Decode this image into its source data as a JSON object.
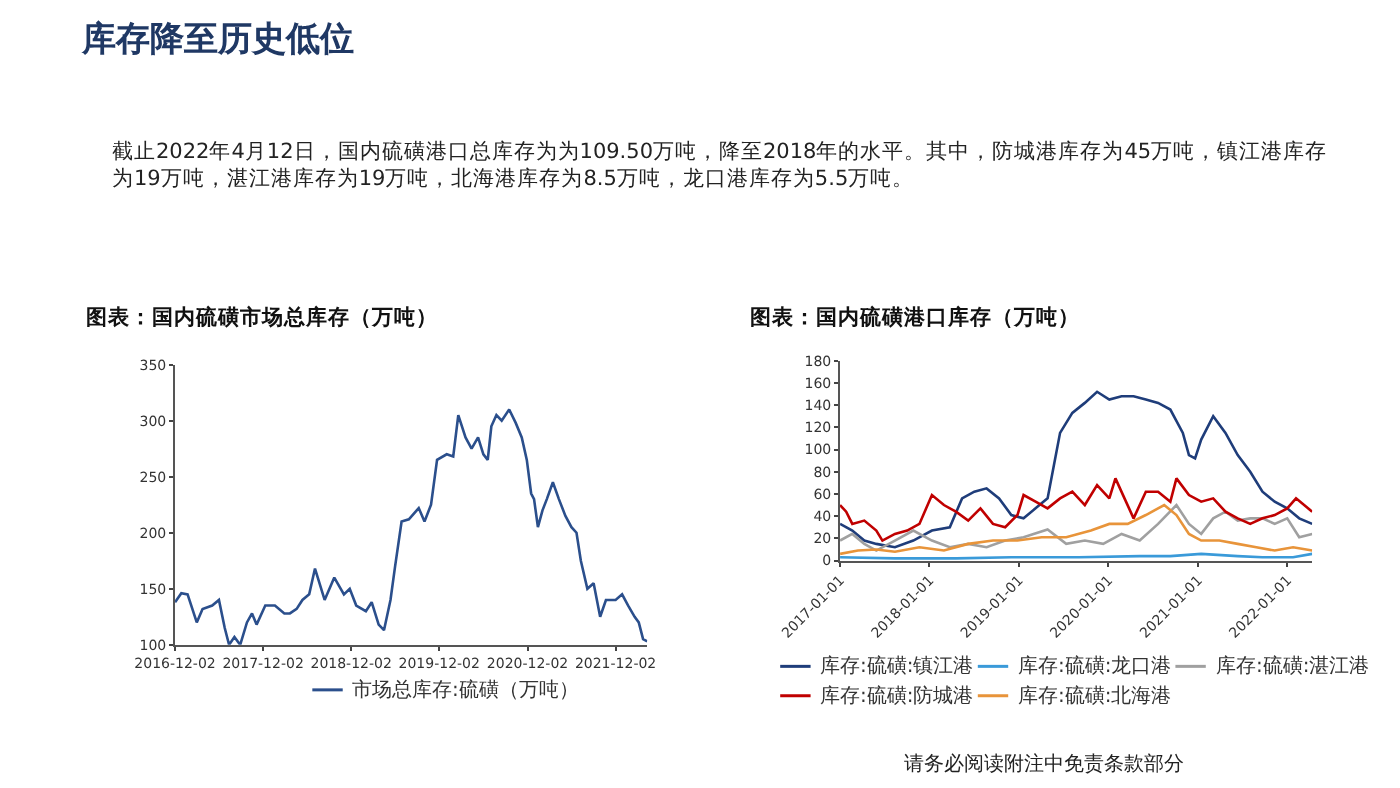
{
  "chart_data": [
    {
      "type": "other",
      "title": "库存降至历史低位",
      "annotations": [
        "截止2022年4月12日，国内硫磺港口总库存为为109.50万吨，降至2018年的水平。其中，防城港库存为45万吨，镇江港库存为19万吨，湛江港库存为19万吨，北海港库存为8.5万吨，龙口港库存为5.5万吨。",
        "请务必阅读附注中免责条款部分"
      ]
    },
    {
      "type": "line",
      "title": "图表：国内硫磺市场总库存（万吨）",
      "legend": "bottom",
      "xlim": [
        "2016-12-02",
        "2022-04-12"
      ],
      "xticks": [
        "2016-12-02",
        "2017-12-02",
        "2018-12-02",
        "2019-12-02",
        "2020-12-02",
        "2021-12-02"
      ],
      "ylim": [
        100,
        350
      ],
      "yticks": [
        100,
        150,
        200,
        250,
        300,
        350
      ],
      "series": [
        {
          "name": "市场总库存:硫磺（万吨）",
          "color": "#2b4f8c",
          "x": [
            "2016-12-02",
            "2016-12-28",
            "2017-01-23",
            "2017-03-02",
            "2017-03-26",
            "2017-05-05",
            "2017-06-02",
            "2017-06-26",
            "2017-07-14",
            "2017-08-05",
            "2017-08-29",
            "2017-09-26",
            "2017-10-17",
            "2017-11-05",
            "2017-12-11",
            "2018-01-20",
            "2018-02-28",
            "2018-03-23",
            "2018-04-20",
            "2018-05-14",
            "2018-06-11",
            "2018-07-05",
            "2018-08-14",
            "2018-09-23",
            "2018-11-02",
            "2018-11-26",
            "2018-12-23",
            "2019-02-01",
            "2019-02-25",
            "2019-03-26",
            "2019-04-17",
            "2019-05-14",
            "2019-06-02",
            "2019-06-29",
            "2019-07-29",
            "2019-09-08",
            "2019-10-02",
            "2019-10-29",
            "2019-11-23",
            "2020-01-02",
            "2020-01-29",
            "2020-02-19",
            "2020-03-20",
            "2020-04-14",
            "2020-05-11",
            "2020-06-02",
            "2020-06-20",
            "2020-07-05",
            "2020-07-26",
            "2020-08-17",
            "2020-09-17",
            "2020-10-14",
            "2020-11-08",
            "2020-11-29",
            "2020-12-17",
            "2020-12-29",
            "2021-01-14",
            "2021-02-02",
            "2021-02-20",
            "2021-03-17",
            "2021-04-11",
            "2021-05-08",
            "2021-06-02",
            "2021-06-23",
            "2021-07-11",
            "2021-08-07",
            "2021-09-02",
            "2021-09-29",
            "2021-10-23",
            "2021-12-02",
            "2021-12-29",
            "2022-01-23",
            "2022-02-19",
            "2022-03-08",
            "2022-03-26",
            "2022-04-12"
          ],
          "values": [
            138,
            146,
            145,
            120,
            132,
            135,
            140,
            115,
            100,
            107,
            100,
            120,
            128,
            118,
            135,
            135,
            128,
            128,
            132,
            140,
            145,
            168,
            140,
            160,
            145,
            150,
            135,
            130,
            138,
            118,
            113,
            140,
            170,
            210,
            212,
            222,
            210,
            225,
            265,
            270,
            268,
            305,
            285,
            275,
            285,
            270,
            265,
            295,
            305,
            300,
            310,
            298,
            285,
            265,
            235,
            230,
            205,
            220,
            230,
            245,
            230,
            215,
            205,
            200,
            175,
            150,
            155,
            125,
            140,
            140,
            145,
            135,
            125,
            120,
            105,
            103
          ]
        }
      ]
    },
    {
      "type": "line",
      "title": "图表：国内硫磺港口库存（万吨）",
      "legend": "bottom",
      "xlim": [
        "2017-01-01",
        "2022-04-12"
      ],
      "xticks": [
        "2017-01-01",
        "2018-01-01",
        "2019-01-01",
        "2020-01-01",
        "2021-01-01",
        "2022-01-01"
      ],
      "ylim": [
        0,
        180
      ],
      "yticks": [
        0,
        20,
        40,
        60,
        80,
        100,
        120,
        140,
        160,
        180
      ],
      "series": [
        {
          "name": "库存:硫磺:镇江港",
          "color": "#1f3d7a",
          "x": [
            "2017-01-01",
            "2017-02-20",
            "2017-04-10",
            "2017-05-29",
            "2017-08-13",
            "2017-10-27",
            "2018-01-11",
            "2018-03-25",
            "2018-05-14",
            "2018-07-03",
            "2018-08-22",
            "2018-10-12",
            "2018-12-01",
            "2019-01-20",
            "2019-03-10",
            "2019-04-28",
            "2019-05-24",
            "2019-06-18",
            "2019-08-07",
            "2019-09-27",
            "2019-11-16",
            "2020-01-05",
            "2020-02-24",
            "2020-04-13",
            "2020-06-02",
            "2020-07-22",
            "2020-09-10",
            "2020-10-31",
            "2020-11-25",
            "2020-12-20",
            "2021-01-14",
            "2021-03-04",
            "2021-04-23",
            "2021-06-12",
            "2021-08-02",
            "2021-09-21",
            "2021-11-10",
            "2021-12-31",
            "2022-02-18",
            "2022-04-12"
          ],
          "values": [
            33,
            27,
            18,
            15,
            12,
            18,
            27,
            30,
            56,
            62,
            65,
            56,
            41,
            38,
            47,
            56,
            86,
            115,
            133,
            142,
            152,
            145,
            148,
            148,
            145,
            142,
            136,
            115,
            95,
            92,
            109,
            130,
            115,
            95,
            80,
            62,
            53,
            47,
            38,
            33
          ]
        },
        {
          "name": "库存:硫磺:龙口港",
          "color": "#3a9ad9",
          "x": [
            "2017-01-01",
            "2017-08-13",
            "2018-04-19",
            "2018-12-01",
            "2019-09-02",
            "2020-05-08",
            "2020-09-10",
            "2021-01-14",
            "2021-06-12",
            "2021-09-21",
            "2022-01-24",
            "2022-04-12"
          ],
          "values": [
            3,
            2,
            2,
            3,
            3,
            4,
            4,
            6,
            4,
            3,
            3,
            6
          ]
        },
        {
          "name": "库存:硫磺:湛江港",
          "color": "#a0a0a0",
          "x": [
            "2017-01-01",
            "2017-02-20",
            "2017-04-10",
            "2017-05-29",
            "2017-08-13",
            "2017-10-27",
            "2018-01-11",
            "2018-03-25",
            "2018-06-08",
            "2018-08-22",
            "2018-11-06",
            "2019-01-20",
            "2019-04-28",
            "2019-07-13",
            "2019-09-27",
            "2019-12-11",
            "2020-02-24",
            "2020-05-08",
            "2020-07-22",
            "2020-10-05",
            "2020-11-25",
            "2021-01-14",
            "2021-03-04",
            "2021-04-23",
            "2021-06-12",
            "2021-08-02",
            "2021-09-21",
            "2021-11-10",
            "2021-12-31",
            "2022-02-18",
            "2022-04-12"
          ],
          "values": [
            18,
            24,
            15,
            9,
            18,
            27,
            18,
            12,
            15,
            12,
            18,
            21,
            28,
            15,
            18,
            15,
            24,
            18,
            33,
            50,
            33,
            24,
            38,
            44,
            36,
            38,
            38,
            33,
            38,
            21,
            24
          ]
        },
        {
          "name": "库存:硫磺:防城港",
          "color": "#c00000",
          "x": [
            "2017-01-01",
            "2017-01-26",
            "2017-02-20",
            "2017-04-10",
            "2017-05-29",
            "2017-06-23",
            "2017-08-13",
            "2017-10-02",
            "2017-11-21",
            "2018-01-11",
            "2018-03-01",
            "2018-04-19",
            "2018-06-08",
            "2018-07-28",
            "2018-09-17",
            "2018-11-06",
            "2018-12-26",
            "2019-01-20",
            "2019-03-10",
            "2019-04-28",
            "2019-06-18",
            "2019-08-07",
            "2019-09-27",
            "2019-11-16",
            "2020-01-05",
            "2020-01-30",
            "2020-03-07",
            "2020-04-13",
            "2020-06-02",
            "2020-07-22",
            "2020-09-10",
            "2020-10-05",
            "2020-11-25",
            "2021-01-14",
            "2021-03-04",
            "2021-04-23",
            "2021-06-12",
            "2021-08-02",
            "2021-09-21",
            "2021-11-10",
            "2021-12-31",
            "2022-02-05",
            "2022-04-12"
          ],
          "values": [
            50,
            44,
            33,
            36,
            27,
            18,
            24,
            27,
            33,
            59,
            50,
            44,
            36,
            47,
            33,
            30,
            41,
            59,
            53,
            47,
            56,
            62,
            50,
            68,
            56,
            74,
            56,
            38,
            62,
            62,
            53,
            74,
            59,
            53,
            56,
            44,
            38,
            33,
            38,
            41,
            47,
            56,
            44
          ]
        },
        {
          "name": "库存:硫磺:北海港",
          "color": "#e8943a",
          "x": [
            "2017-01-01",
            "2017-03-15",
            "2017-05-29",
            "2017-08-13",
            "2017-11-21",
            "2018-03-01",
            "2018-06-08",
            "2018-09-17",
            "2018-12-26",
            "2019-04-04",
            "2019-07-13",
            "2019-10-22",
            "2020-01-05",
            "2020-03-20",
            "2020-06-02",
            "2020-08-16",
            "2020-10-05",
            "2020-11-25",
            "2021-01-14",
            "2021-03-29",
            "2021-06-12",
            "2021-08-27",
            "2021-11-10",
            "2022-01-24",
            "2022-04-12"
          ],
          "values": [
            6,
            9,
            10,
            8,
            12,
            9,
            15,
            18,
            18,
            21,
            21,
            27,
            33,
            33,
            41,
            50,
            41,
            24,
            18,
            18,
            15,
            12,
            9,
            12,
            9
          ]
        }
      ]
    }
  ]
}
